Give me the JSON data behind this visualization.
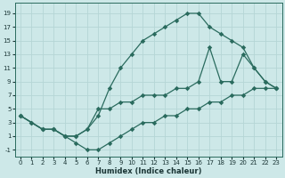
{
  "xlabel": "Humidex (Indice chaleur)",
  "bg_color": "#cde8e8",
  "grid_color": "#b5d5d5",
  "line_color": "#2a6b5e",
  "xlim": [
    -0.5,
    23.5
  ],
  "ylim": [
    -2,
    20.5
  ],
  "xticks": [
    0,
    1,
    2,
    3,
    4,
    5,
    6,
    7,
    8,
    9,
    10,
    11,
    12,
    13,
    14,
    15,
    16,
    17,
    18,
    19,
    20,
    21,
    22,
    23
  ],
  "yticks": [
    -1,
    1,
    3,
    5,
    7,
    9,
    11,
    13,
    15,
    17,
    19
  ],
  "line1_x": [
    0,
    1,
    2,
    3,
    4,
    5,
    6,
    7,
    8,
    9,
    10,
    11,
    12,
    13,
    14,
    15,
    16,
    17,
    18,
    19,
    20,
    21,
    22,
    23
  ],
  "line1_y": [
    4,
    3,
    2,
    2,
    1,
    1,
    2,
    4,
    8,
    11,
    13,
    15,
    16,
    17,
    18,
    19,
    19,
    17,
    16,
    15,
    14,
    11,
    9,
    8
  ],
  "line2_x": [
    0,
    2,
    3,
    4,
    5,
    6,
    7,
    8,
    9,
    10,
    11,
    12,
    13,
    14,
    15,
    16,
    17,
    18,
    19,
    20,
    21,
    22,
    23
  ],
  "line2_y": [
    4,
    2,
    2,
    1,
    1,
    2,
    5,
    5,
    6,
    6,
    7,
    7,
    7,
    8,
    8,
    9,
    14,
    9,
    9,
    13,
    11,
    9,
    8
  ],
  "line3_x": [
    0,
    1,
    2,
    3,
    4,
    5,
    6,
    7,
    8,
    9,
    10,
    11,
    12,
    13,
    14,
    15,
    16,
    17,
    18,
    19,
    20,
    21,
    22,
    23
  ],
  "line3_y": [
    4,
    3,
    2,
    2,
    1,
    0,
    -1,
    -1,
    0,
    1,
    2,
    3,
    3,
    4,
    4,
    5,
    5,
    6,
    6,
    7,
    7,
    8,
    8,
    8
  ]
}
